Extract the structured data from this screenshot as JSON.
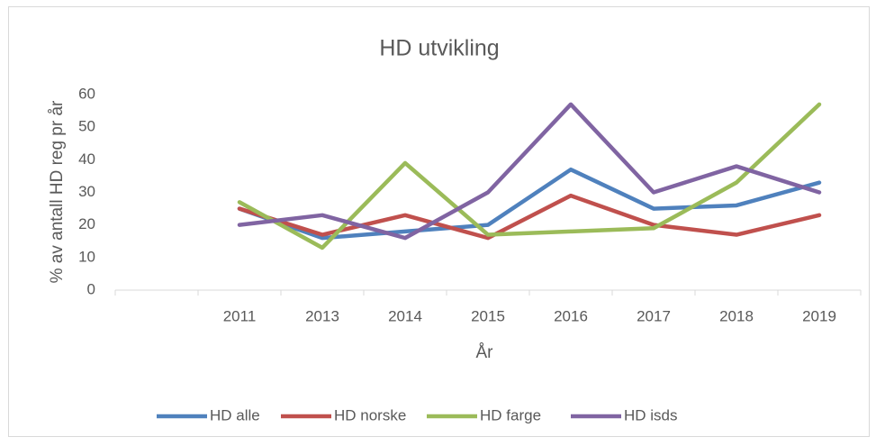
{
  "chart_data": {
    "type": "line",
    "title": "HD utvikling",
    "x_label": "År",
    "y_label": "% av antall HD reg pr år",
    "categories": [
      null,
      "2011",
      "2013",
      "2014",
      "2015",
      "2016",
      "2017",
      "2018",
      "2019"
    ],
    "series": [
      {
        "name": "HD alle",
        "color": "#4f81bd",
        "values": [
          null,
          25,
          16,
          18,
          20,
          37,
          25,
          26,
          33
        ]
      },
      {
        "name": "HD norske",
        "color": "#c0504d",
        "values": [
          null,
          25,
          17,
          23,
          16,
          29,
          20,
          17,
          23
        ]
      },
      {
        "name": "HD farge",
        "color": "#9bbb59",
        "values": [
          null,
          27,
          13,
          39,
          17,
          18,
          19,
          33,
          57
        ]
      },
      {
        "name": "HD isds",
        "color": "#8064a2",
        "values": [
          null,
          20,
          23,
          16,
          30,
          57,
          30,
          38,
          30
        ]
      }
    ],
    "ylim": [
      0,
      60
    ],
    "yticks": [
      0,
      10,
      20,
      30,
      40,
      50,
      60
    ],
    "grid": false,
    "legend": "bottom"
  }
}
